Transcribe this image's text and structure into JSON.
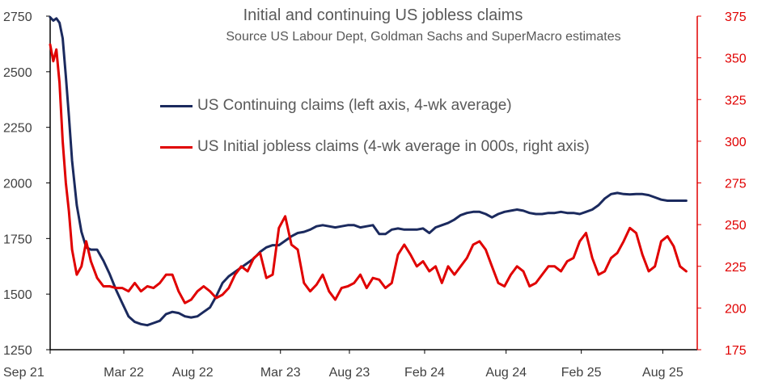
{
  "chart_data": {
    "type": "line",
    "title": "Initial and continuing US jobless claims",
    "subtitle": "Source US Labour Dept, Goldman Sachs and SuperMacro estimates",
    "x_tick_labels": [
      "Sep 21",
      "Mar 22",
      "Aug 22",
      "Mar 23",
      "Aug 23",
      "Feb 24",
      "Aug 24",
      "Feb 25",
      "Aug 25"
    ],
    "x_range": [
      "Sep 21",
      "Sep 25"
    ],
    "y_left": {
      "ylim": [
        1250,
        2750
      ],
      "ticks": [
        1250,
        1500,
        1750,
        2000,
        2250,
        2500,
        2750
      ],
      "color": "#000000"
    },
    "y_right": {
      "ylim": [
        175,
        375
      ],
      "ticks": [
        175,
        200,
        225,
        250,
        275,
        300,
        325,
        350,
        375
      ],
      "color": "#e00000"
    },
    "grid": false,
    "legend_placement": "upper-left-inside",
    "series": [
      {
        "name": "US Continuing claims (left axis, 4-wk average)",
        "axis": "left",
        "color": "#1b2a5e",
        "x": [
          2021.7,
          2021.72,
          2021.74,
          2021.76,
          2021.78,
          2021.8,
          2021.82,
          2021.84,
          2021.87,
          2021.9,
          2021.93,
          2021.96,
          2022.0,
          2022.04,
          2022.08,
          2022.12,
          2022.16,
          2022.2,
          2022.24,
          2022.28,
          2022.32,
          2022.36,
          2022.4,
          2022.44,
          2022.48,
          2022.52,
          2022.56,
          2022.6,
          2022.64,
          2022.68,
          2022.72,
          2022.76,
          2022.8,
          2022.84,
          2022.88,
          2022.92,
          2022.96,
          2023.0,
          2023.04,
          2023.08,
          2023.12,
          2023.16,
          2023.2,
          2023.24,
          2023.28,
          2023.32,
          2023.36,
          2023.4,
          2023.44,
          2023.48,
          2023.52,
          2023.56,
          2023.6,
          2023.64,
          2023.68,
          2023.72,
          2023.76,
          2023.8,
          2023.84,
          2023.88,
          2023.92,
          2023.96,
          2024.0,
          2024.04,
          2024.08,
          2024.12,
          2024.16,
          2024.2,
          2024.24,
          2024.28,
          2024.32,
          2024.36,
          2024.4,
          2024.44,
          2024.48,
          2024.52,
          2024.56,
          2024.6,
          2024.64,
          2024.68,
          2024.72,
          2024.76,
          2024.8,
          2024.84,
          2024.88,
          2024.92,
          2024.96,
          2025.0,
          2025.04,
          2025.08,
          2025.12,
          2025.16,
          2025.2,
          2025.24,
          2025.28,
          2025.32,
          2025.36,
          2025.4,
          2025.44,
          2025.48,
          2025.52,
          2025.56,
          2025.6,
          2025.64,
          2025.68,
          2025.72,
          2025.76
        ],
        "values": [
          2745,
          2730,
          2740,
          2720,
          2650,
          2480,
          2300,
          2100,
          1900,
          1780,
          1710,
          1700,
          1700,
          1650,
          1590,
          1520,
          1460,
          1400,
          1375,
          1365,
          1360,
          1370,
          1380,
          1410,
          1420,
          1415,
          1400,
          1395,
          1400,
          1420,
          1440,
          1490,
          1550,
          1580,
          1600,
          1620,
          1640,
          1660,
          1690,
          1710,
          1720,
          1720,
          1740,
          1760,
          1775,
          1780,
          1790,
          1805,
          1810,
          1805,
          1800,
          1805,
          1810,
          1810,
          1800,
          1805,
          1810,
          1770,
          1770,
          1790,
          1795,
          1790,
          1790,
          1790,
          1795,
          1775,
          1800,
          1810,
          1820,
          1835,
          1855,
          1865,
          1870,
          1870,
          1860,
          1845,
          1860,
          1870,
          1875,
          1880,
          1875,
          1865,
          1860,
          1860,
          1865,
          1865,
          1870,
          1865,
          1865,
          1860,
          1870,
          1880,
          1900,
          1930,
          1950,
          1955,
          1950,
          1948,
          1950,
          1950,
          1945,
          1935,
          1925,
          1920,
          1920,
          1920,
          1920
        ]
      },
      {
        "name": "US Initial jobless claims (4-wk average in 000s, right axis)",
        "axis": "right",
        "color": "#e00000",
        "x": [
          2021.7,
          2021.72,
          2021.74,
          2021.76,
          2021.78,
          2021.8,
          2021.82,
          2021.84,
          2021.87,
          2021.9,
          2021.93,
          2021.96,
          2022.0,
          2022.04,
          2022.08,
          2022.12,
          2022.16,
          2022.2,
          2022.24,
          2022.28,
          2022.32,
          2022.36,
          2022.4,
          2022.44,
          2022.48,
          2022.52,
          2022.56,
          2022.6,
          2022.64,
          2022.68,
          2022.72,
          2022.76,
          2022.8,
          2022.84,
          2022.88,
          2022.92,
          2022.96,
          2023.0,
          2023.04,
          2023.08,
          2023.12,
          2023.16,
          2023.2,
          2023.24,
          2023.28,
          2023.32,
          2023.36,
          2023.4,
          2023.44,
          2023.48,
          2023.52,
          2023.56,
          2023.6,
          2023.64,
          2023.68,
          2023.72,
          2023.76,
          2023.8,
          2023.84,
          2023.88,
          2023.92,
          2023.96,
          2024.0,
          2024.04,
          2024.08,
          2024.12,
          2024.16,
          2024.2,
          2024.24,
          2024.28,
          2024.32,
          2024.36,
          2024.4,
          2024.44,
          2024.48,
          2024.52,
          2024.56,
          2024.6,
          2024.64,
          2024.68,
          2024.72,
          2024.76,
          2024.8,
          2024.84,
          2024.88,
          2024.92,
          2024.96,
          2025.0,
          2025.04,
          2025.08,
          2025.12,
          2025.16,
          2025.2,
          2025.24,
          2025.28,
          2025.32,
          2025.36,
          2025.4,
          2025.44,
          2025.48,
          2025.52,
          2025.56,
          2025.6,
          2025.64,
          2025.68,
          2025.72,
          2025.76
        ],
        "values": [
          358,
          348,
          355,
          335,
          300,
          275,
          258,
          235,
          220,
          225,
          240,
          228,
          218,
          213,
          213,
          212,
          212,
          210,
          215,
          210,
          213,
          212,
          215,
          220,
          220,
          210,
          203,
          205,
          210,
          213,
          210,
          206,
          208,
          212,
          220,
          225,
          222,
          230,
          233,
          218,
          220,
          248,
          255,
          238,
          235,
          215,
          210,
          214,
          220,
          210,
          205,
          212,
          213,
          215,
          220,
          212,
          218,
          217,
          212,
          215,
          232,
          238,
          232,
          225,
          228,
          222,
          225,
          215,
          225,
          220,
          225,
          230,
          238,
          240,
          235,
          225,
          215,
          213,
          220,
          225,
          222,
          213,
          215,
          220,
          225,
          225,
          222,
          228,
          230,
          240,
          245,
          230,
          220,
          222,
          230,
          233,
          240,
          248,
          245,
          232,
          222,
          225,
          240,
          243,
          237,
          225,
          222
        ]
      }
    ]
  }
}
